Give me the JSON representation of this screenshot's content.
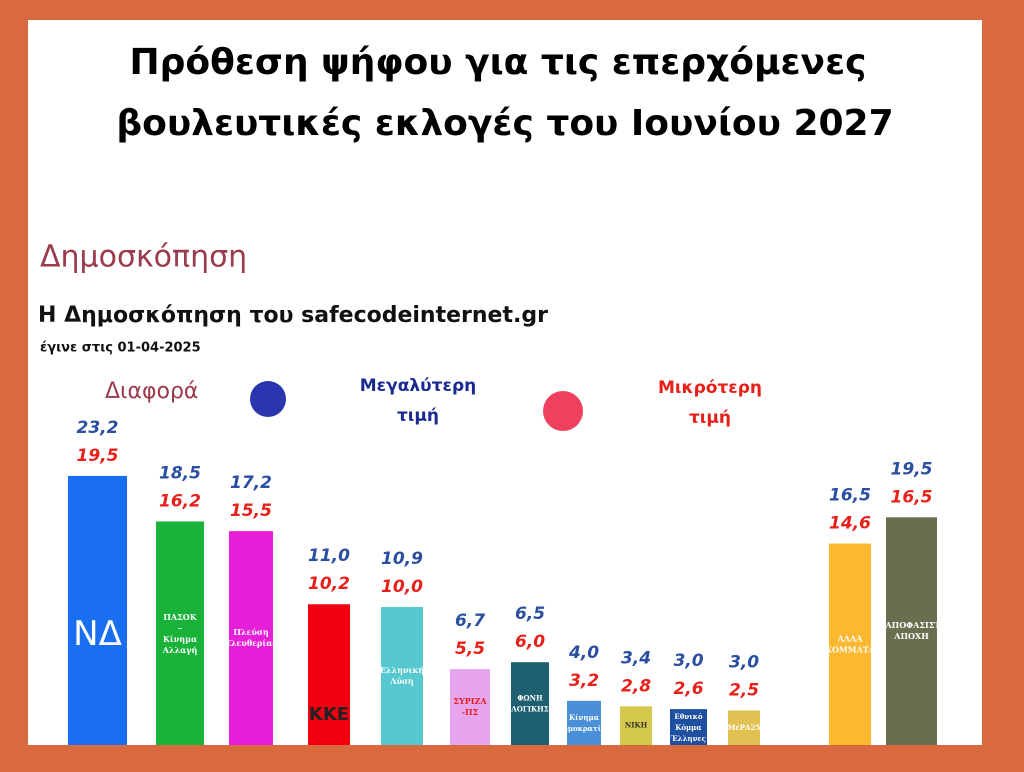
{
  "chart_data": {
    "type": "bar",
    "title": [
      "Πρόθεση ψήφου για τις επερχόμενες",
      "βουλευτικές εκλογές του Ιουνίου 2027"
    ],
    "subtitle": "Δημοσκόπηση",
    "source": "Η Δημοσκόπηση του safecodeinternet.gr",
    "date": "έγινε στις 01-04-2025",
    "annotation": "Διαφορά",
    "categories": [
      "ΝΔ",
      "ΠΑΣΟΚ – Κίνημα Αλλαγή",
      "Πλεύση Ελευθερίας",
      "ΚΚΕ",
      "Ελληνική Λύση",
      "ΣΥΡΙΖΑ -ΠΣ",
      "ΦΩΝΗ ΛΟΓΙΚΗΣ",
      "Κίνημα Δημοκρατίας",
      "ΝΙΚΗ",
      "Εθνικό Κόμμα Έλληνες",
      "ΜέΡΑ25",
      "ΑΛΛΑ ΚΟΜΜΑΤΑ",
      "ΑΝΑΠΟΦΑΣΙΣΤΟΙ ΑΠΟΧΗ"
    ],
    "colors": [
      "#1a6ef0",
      "#19b33a",
      "#e620d8",
      "#f00010",
      "#55c8d0",
      "#e8a4ec",
      "#1e5f70",
      "#4a90d8",
      "#d4c84a",
      "#1e4fa0",
      "#e0c050",
      "#fbb830",
      "#6b6e4e"
    ],
    "series": [
      {
        "name": "Μεγαλύτερη τιμή",
        "color": "#2a4ea0",
        "values": [
          23.2,
          18.5,
          17.2,
          11.0,
          10.9,
          6.7,
          6.5,
          4.0,
          3.4,
          3.0,
          3.0,
          16.5,
          19.5
        ],
        "value_labels": [
          "23,2",
          "18,5",
          "17,2",
          "11,0",
          "10,9",
          "6,7",
          "6,5",
          "4,0",
          "3,4",
          "3,0",
          "3,0",
          "16,5",
          "19,5"
        ]
      },
      {
        "name": "Μικρότερη τιμή",
        "color": "#e8201a",
        "values": [
          19.5,
          16.2,
          15.5,
          10.2,
          10.0,
          5.5,
          6.0,
          3.2,
          2.8,
          2.6,
          2.5,
          14.6,
          16.5
        ],
        "value_labels": [
          "19,5",
          "16,2",
          "15,5",
          "10,2",
          "10,0",
          "5,5",
          "6,0",
          "3,2",
          "2,8",
          "2,6",
          "2,5",
          "14,6",
          "16,5"
        ]
      }
    ]
  }
}
